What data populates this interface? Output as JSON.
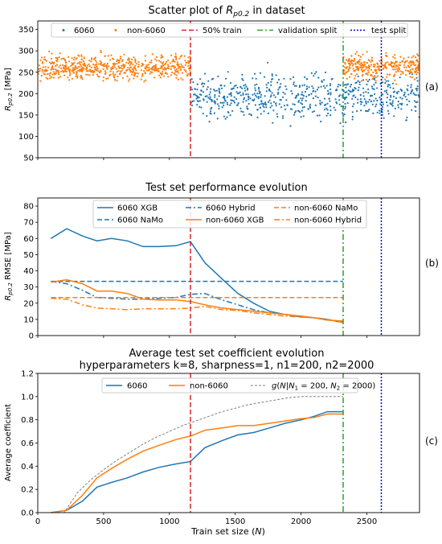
{
  "figure": {
    "xlabel": "Train set size (N)",
    "x_ticks": [
      0,
      500,
      1000,
      1500,
      2000,
      2500
    ],
    "xlim": [
      0,
      2900
    ]
  },
  "chart_data": [
    {
      "type": "scatter",
      "panel": "(a)",
      "title": "Scatter plot of R_p0.2 in dataset",
      "ylabel": "R_p0.2 [MPa]",
      "ylim": [
        50,
        370
      ],
      "y_ticks": [
        50,
        100,
        150,
        200,
        250,
        300,
        350
      ],
      "legend_placement": "top",
      "series": [
        {
          "name": "6060",
          "color": "#1f77b4",
          "x_range": [
            1160,
            2900
          ],
          "y_center": 195,
          "y_spread": 45,
          "count": 650
        },
        {
          "name": "non-6060",
          "color": "#ff7f0e",
          "x_ranges": [
            [
              0,
              1160
            ],
            [
              2320,
              2900
            ]
          ],
          "y_center": 262,
          "y_spread": 25,
          "count": 900
        }
      ],
      "vlines": [
        {
          "name": "50% train",
          "x": 1160,
          "color": "#d62728",
          "style": "dashed"
        },
        {
          "name": "validation split",
          "x": 2320,
          "color": "#2ca02c",
          "style": "dashdot"
        },
        {
          "name": "test split",
          "x": 2610,
          "color": "#0000cc",
          "style": "dotted"
        }
      ]
    },
    {
      "type": "line",
      "panel": "(b)",
      "title": "Test set performance evolution",
      "ylabel": "R_p0.2 RMSE [MPa]",
      "ylim": [
        0,
        85
      ],
      "y_ticks": [
        0,
        10,
        20,
        30,
        40,
        50,
        60,
        70,
        80
      ],
      "legend_placement": "top",
      "series": [
        {
          "name": "6060 XGB",
          "color": "#1f77b4",
          "style": "solid",
          "x": [
            100,
            220,
            340,
            450,
            560,
            680,
            800,
            920,
            1050,
            1160,
            1270,
            1400,
            1520,
            1640,
            1760,
            1880,
            2000,
            2100,
            2200,
            2320
          ],
          "y": [
            60,
            66,
            61.5,
            58.5,
            60,
            58.5,
            55,
            55,
            55.5,
            58,
            45,
            35,
            26,
            20,
            15,
            13,
            11.5,
            11,
            10,
            8
          ]
        },
        {
          "name": "6060 Hybrid",
          "color": "#1f77b4",
          "style": "dashdot",
          "x": [
            100,
            220,
            340,
            450,
            560,
            680,
            800,
            920,
            1050,
            1160,
            1270,
            1400,
            1520,
            1640,
            1760,
            1880,
            2000,
            2100,
            2200,
            2320
          ],
          "y": [
            33.5,
            32,
            28,
            23.5,
            23,
            22.5,
            22.5,
            23,
            23.5,
            25.5,
            26,
            22,
            19,
            16,
            14,
            13,
            12,
            11,
            10,
            8.5
          ]
        },
        {
          "name": "6060 NaMo",
          "color": "#1f77b4",
          "style": "dashed",
          "x": [
            100,
            2320
          ],
          "y": [
            33.5,
            33.5
          ]
        },
        {
          "name": "non-6060 XGB",
          "color": "#ff7f0e",
          "style": "solid",
          "x": [
            100,
            220,
            340,
            450,
            560,
            680,
            800,
            920,
            1050,
            1160,
            1270,
            1400,
            1520,
            1640,
            1760,
            1880,
            2000,
            2100,
            2200,
            2320
          ],
          "y": [
            33,
            34.5,
            32,
            27.5,
            27.5,
            26,
            22.5,
            22,
            22,
            21,
            19,
            17,
            16,
            15,
            14,
            13,
            12,
            11,
            9.5,
            9
          ]
        },
        {
          "name": "non-6060 NaMo",
          "color": "#ff7f0e",
          "style": "dashed",
          "x": [
            100,
            2320
          ],
          "y": [
            23.5,
            23.5
          ]
        },
        {
          "name": "non-6060 Hybrid",
          "color": "#ff7f0e",
          "style": "dashdot",
          "x": [
            100,
            220,
            340,
            450,
            560,
            680,
            800,
            920,
            1050,
            1160,
            1270,
            1400,
            1520,
            1640,
            1760,
            1880,
            2000,
            2100,
            2200,
            2320
          ],
          "y": [
            23,
            22.5,
            19,
            17,
            16.5,
            16,
            16.5,
            16.5,
            16.5,
            17,
            18,
            16,
            15.5,
            14,
            13,
            12,
            11.5,
            11,
            10,
            8
          ]
        }
      ],
      "vlines": [
        {
          "x": 1160,
          "color": "#d62728",
          "style": "dashed"
        },
        {
          "x": 2320,
          "color": "#2ca02c",
          "style": "dashdot"
        },
        {
          "x": 2610,
          "color": "#0000cc",
          "style": "dotted"
        }
      ]
    },
    {
      "type": "line",
      "panel": "(c)",
      "title": "Average test set coefficient evolution",
      "subtitle": "hyperparameters k=8, sharpness=1, n1=200, n2=2000",
      "ylabel": "Average coefficient",
      "ylim": [
        0,
        1.2
      ],
      "y_ticks": [
        0.0,
        0.2,
        0.4,
        0.6,
        0.8,
        1.0,
        1.2
      ],
      "legend_placement": "top",
      "series": [
        {
          "name": "6060",
          "color": "#1f77b4",
          "style": "solid",
          "x": [
            100,
            220,
            340,
            450,
            560,
            680,
            800,
            920,
            1050,
            1160,
            1270,
            1400,
            1520,
            1640,
            1760,
            1880,
            2000,
            2100,
            2200,
            2320
          ],
          "y": [
            0,
            0.02,
            0.1,
            0.22,
            0.26,
            0.3,
            0.35,
            0.39,
            0.42,
            0.44,
            0.56,
            0.62,
            0.67,
            0.69,
            0.73,
            0.77,
            0.8,
            0.83,
            0.87,
            0.87
          ]
        },
        {
          "name": "non-6060",
          "color": "#ff7f0e",
          "style": "solid",
          "x": [
            100,
            220,
            340,
            450,
            560,
            680,
            800,
            920,
            1050,
            1160,
            1270,
            1400,
            1520,
            1640,
            1760,
            1880,
            2000,
            2100,
            2200,
            2320
          ],
          "y": [
            0,
            0.02,
            0.15,
            0.3,
            0.38,
            0.46,
            0.53,
            0.58,
            0.63,
            0.66,
            0.71,
            0.73,
            0.75,
            0.75,
            0.77,
            0.79,
            0.81,
            0.82,
            0.85,
            0.85
          ]
        },
        {
          "name": "g(N|N1=200, N2=2000)",
          "color": "#808080",
          "style": "dashed",
          "x": [
            100,
            200,
            300,
            400,
            500,
            600,
            700,
            800,
            900,
            1000,
            1100,
            1200,
            1300,
            1400,
            1500,
            1600,
            1700,
            1800,
            1900,
            2000,
            2320
          ],
          "y": [
            0,
            0,
            0.17,
            0.28,
            0.37,
            0.45,
            0.52,
            0.59,
            0.65,
            0.7,
            0.75,
            0.79,
            0.83,
            0.87,
            0.9,
            0.93,
            0.95,
            0.97,
            0.99,
            1.0,
            1.0
          ]
        }
      ],
      "vlines": [
        {
          "x": 1160,
          "color": "#d62728",
          "style": "dashed"
        },
        {
          "x": 2320,
          "color": "#2ca02c",
          "style": "dashdot"
        },
        {
          "x": 2610,
          "color": "#0000cc",
          "style": "dotted"
        }
      ]
    }
  ]
}
